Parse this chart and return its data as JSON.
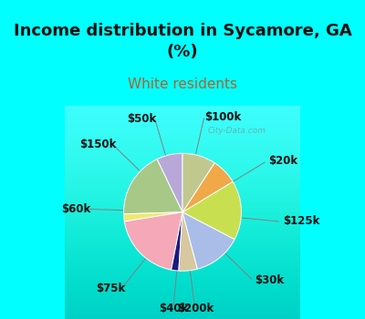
{
  "title": "Income distribution in Sycamore, GA\n(%)",
  "subtitle": "White residents",
  "background_color": "#00FFFF",
  "chart_bg_top": "#e8f5ee",
  "chart_bg_bottom": "#c8eedd",
  "labels": [
    "$100k",
    "$20k",
    "$125k",
    "$30k",
    "$200k",
    "$40k",
    "$75k",
    "$60k",
    "$150k",
    "$50k"
  ],
  "sizes": [
    7,
    18,
    2,
    19,
    2,
    5,
    13,
    16,
    7,
    9
  ],
  "colors": [
    "#b8a8d8",
    "#a8c888",
    "#f0e870",
    "#f4a8b8",
    "#1a1a80",
    "#d8c8a0",
    "#aabce8",
    "#c8e050",
    "#f0a848",
    "#c0c890"
  ],
  "startangle": 90,
  "title_fontsize": 13,
  "subtitle_fontsize": 11,
  "label_fontsize": 8.5,
  "title_color": "#101010",
  "subtitle_color": "#b06030",
  "watermark": "City-Data.com"
}
